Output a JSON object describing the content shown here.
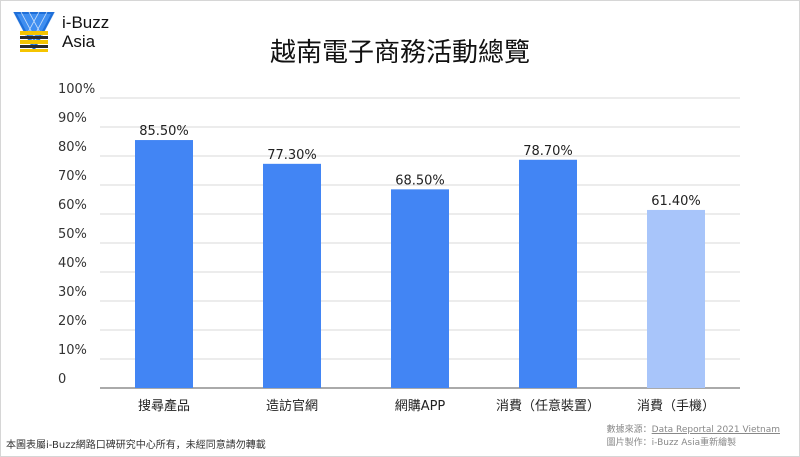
{
  "brand": {
    "line1": "i-Buzz",
    "line2": "Asia",
    "colors": {
      "blue": "#1e6fd9",
      "yellow": "#f5c400",
      "dark": "#2b2b2b"
    }
  },
  "chart_data": {
    "type": "bar",
    "title": "越南電子商務活動總覽",
    "categories": [
      "搜尋產品",
      "造訪官網",
      "網購APP",
      "消費（任意裝置）",
      "消費（手機）"
    ],
    "values": [
      85.5,
      77.3,
      68.5,
      78.7,
      61.4
    ],
    "data_labels": [
      "85.50%",
      "77.30%",
      "68.50%",
      "78.70%",
      "61.40%"
    ],
    "bar_colors": [
      "#4285f4",
      "#4285f4",
      "#4285f4",
      "#4285f4",
      "#a8c5fa"
    ],
    "ylim": [
      0,
      100
    ],
    "yticks": [
      0,
      10,
      20,
      30,
      40,
      50,
      60,
      70,
      80,
      90,
      100
    ],
    "ytick_labels": [
      "0",
      "10%",
      "20%",
      "30%",
      "40%",
      "50%",
      "60%",
      "70%",
      "80%",
      "90%",
      "100%"
    ],
    "grid": true,
    "xlabel": "",
    "ylabel": ""
  },
  "footer": {
    "disclaimer": "本圖表屬i-Buzz網路口碑研究中心所有，未經同意請勿轉載",
    "source_label": "數據來源：",
    "source_link": "Data Reportal 2021 Vietnam",
    "credit": "圖片製作：i-Buzz Asia重新繪製"
  }
}
